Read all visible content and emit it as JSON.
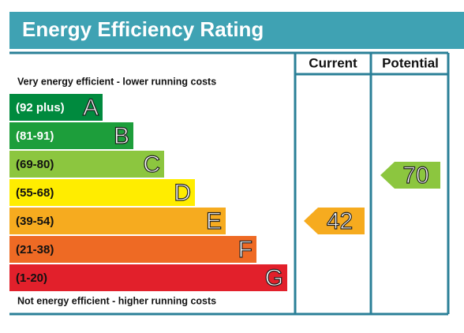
{
  "title": "Energy Efficiency Rating",
  "columns": [
    "Current",
    "Potential"
  ],
  "top_label": "Very energy efficient - lower running costs",
  "bottom_label": "Not energy efficient - higher running costs",
  "bands": [
    {
      "range": "(92 plus)",
      "letter": "A",
      "color": "#008a3e"
    },
    {
      "range": "(81-91)",
      "letter": "B",
      "color": "#1d9e3b"
    },
    {
      "range": "(69-80)",
      "letter": "C",
      "color": "#8cc63f"
    },
    {
      "range": "(55-68)",
      "letter": "D",
      "color": "#ffed00"
    },
    {
      "range": "(39-54)",
      "letter": "E",
      "color": "#f6ab1f"
    },
    {
      "range": "(21-38)",
      "letter": "F",
      "color": "#ee6a24"
    },
    {
      "range": "(1-20)",
      "letter": "G",
      "color": "#e2202b"
    }
  ],
  "current": {
    "value": 42,
    "color": "#f6ab1f"
  },
  "potential": {
    "value": 70,
    "color": "#8cc63f"
  }
}
